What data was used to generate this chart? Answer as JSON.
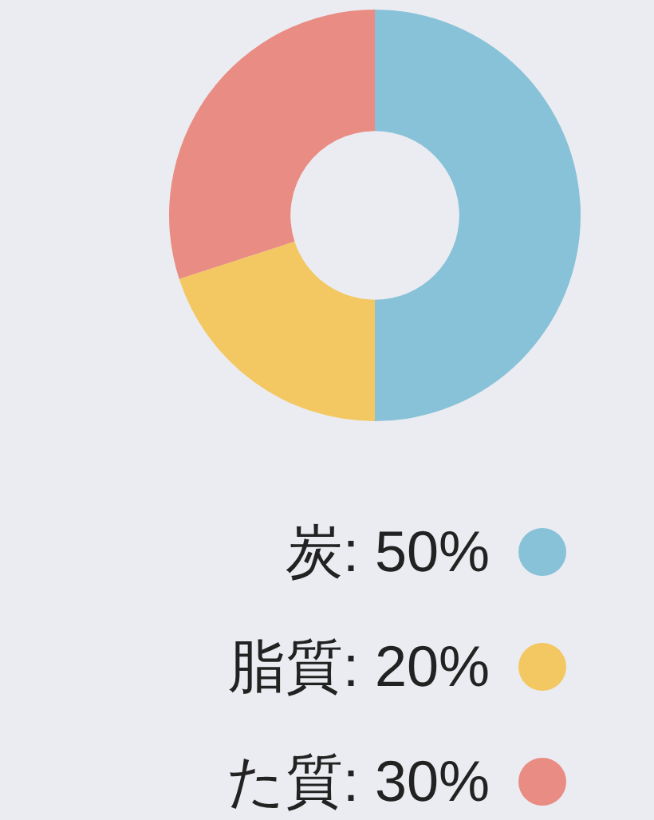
{
  "chart_data": {
    "type": "donut",
    "categories": [
      "炭",
      "脂質",
      "た質"
    ],
    "values": [
      50,
      20,
      30
    ],
    "value_labels": [
      "50%",
      "20%",
      "30%"
    ],
    "colors": [
      "#88c2d8",
      "#f3c862",
      "#e98c83"
    ],
    "legend": "bottom right"
  }
}
